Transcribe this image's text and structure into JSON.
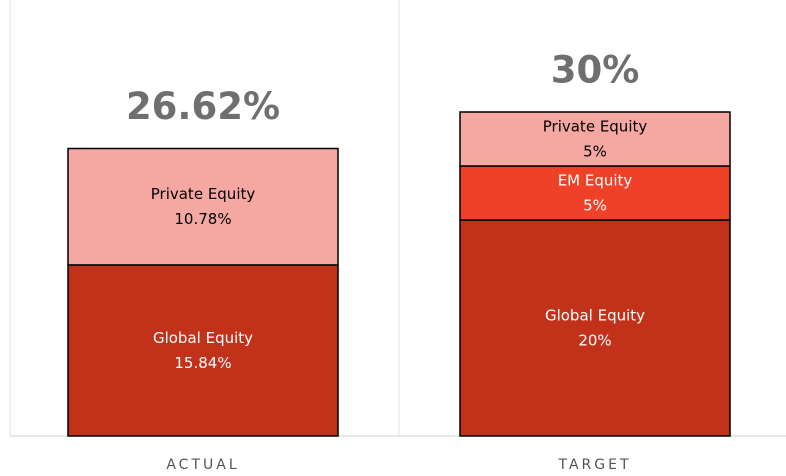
{
  "chart_data": {
    "type": "stacked_bar",
    "categories": [
      "ACTUAL",
      "TARGET"
    ],
    "series": [
      {
        "name": "Global Equity",
        "color": "#c2321b",
        "text_color": "#ffffff",
        "values": [
          15.84,
          20
        ],
        "value_labels": [
          "15.84%",
          "20%"
        ]
      },
      {
        "name": "EM Equity",
        "color": "#ef4128",
        "text_color": "#ffffff",
        "values": [
          null,
          5
        ],
        "value_labels": [
          null,
          "5%"
        ]
      },
      {
        "name": "Private Equity",
        "color": "#f5a8a1",
        "text_color": "#000000",
        "values": [
          10.78,
          5
        ],
        "value_labels": [
          "10.78%",
          "5%"
        ]
      }
    ],
    "totals": [
      26.62,
      30
    ],
    "total_labels": [
      "26.62%",
      "30%"
    ]
  }
}
